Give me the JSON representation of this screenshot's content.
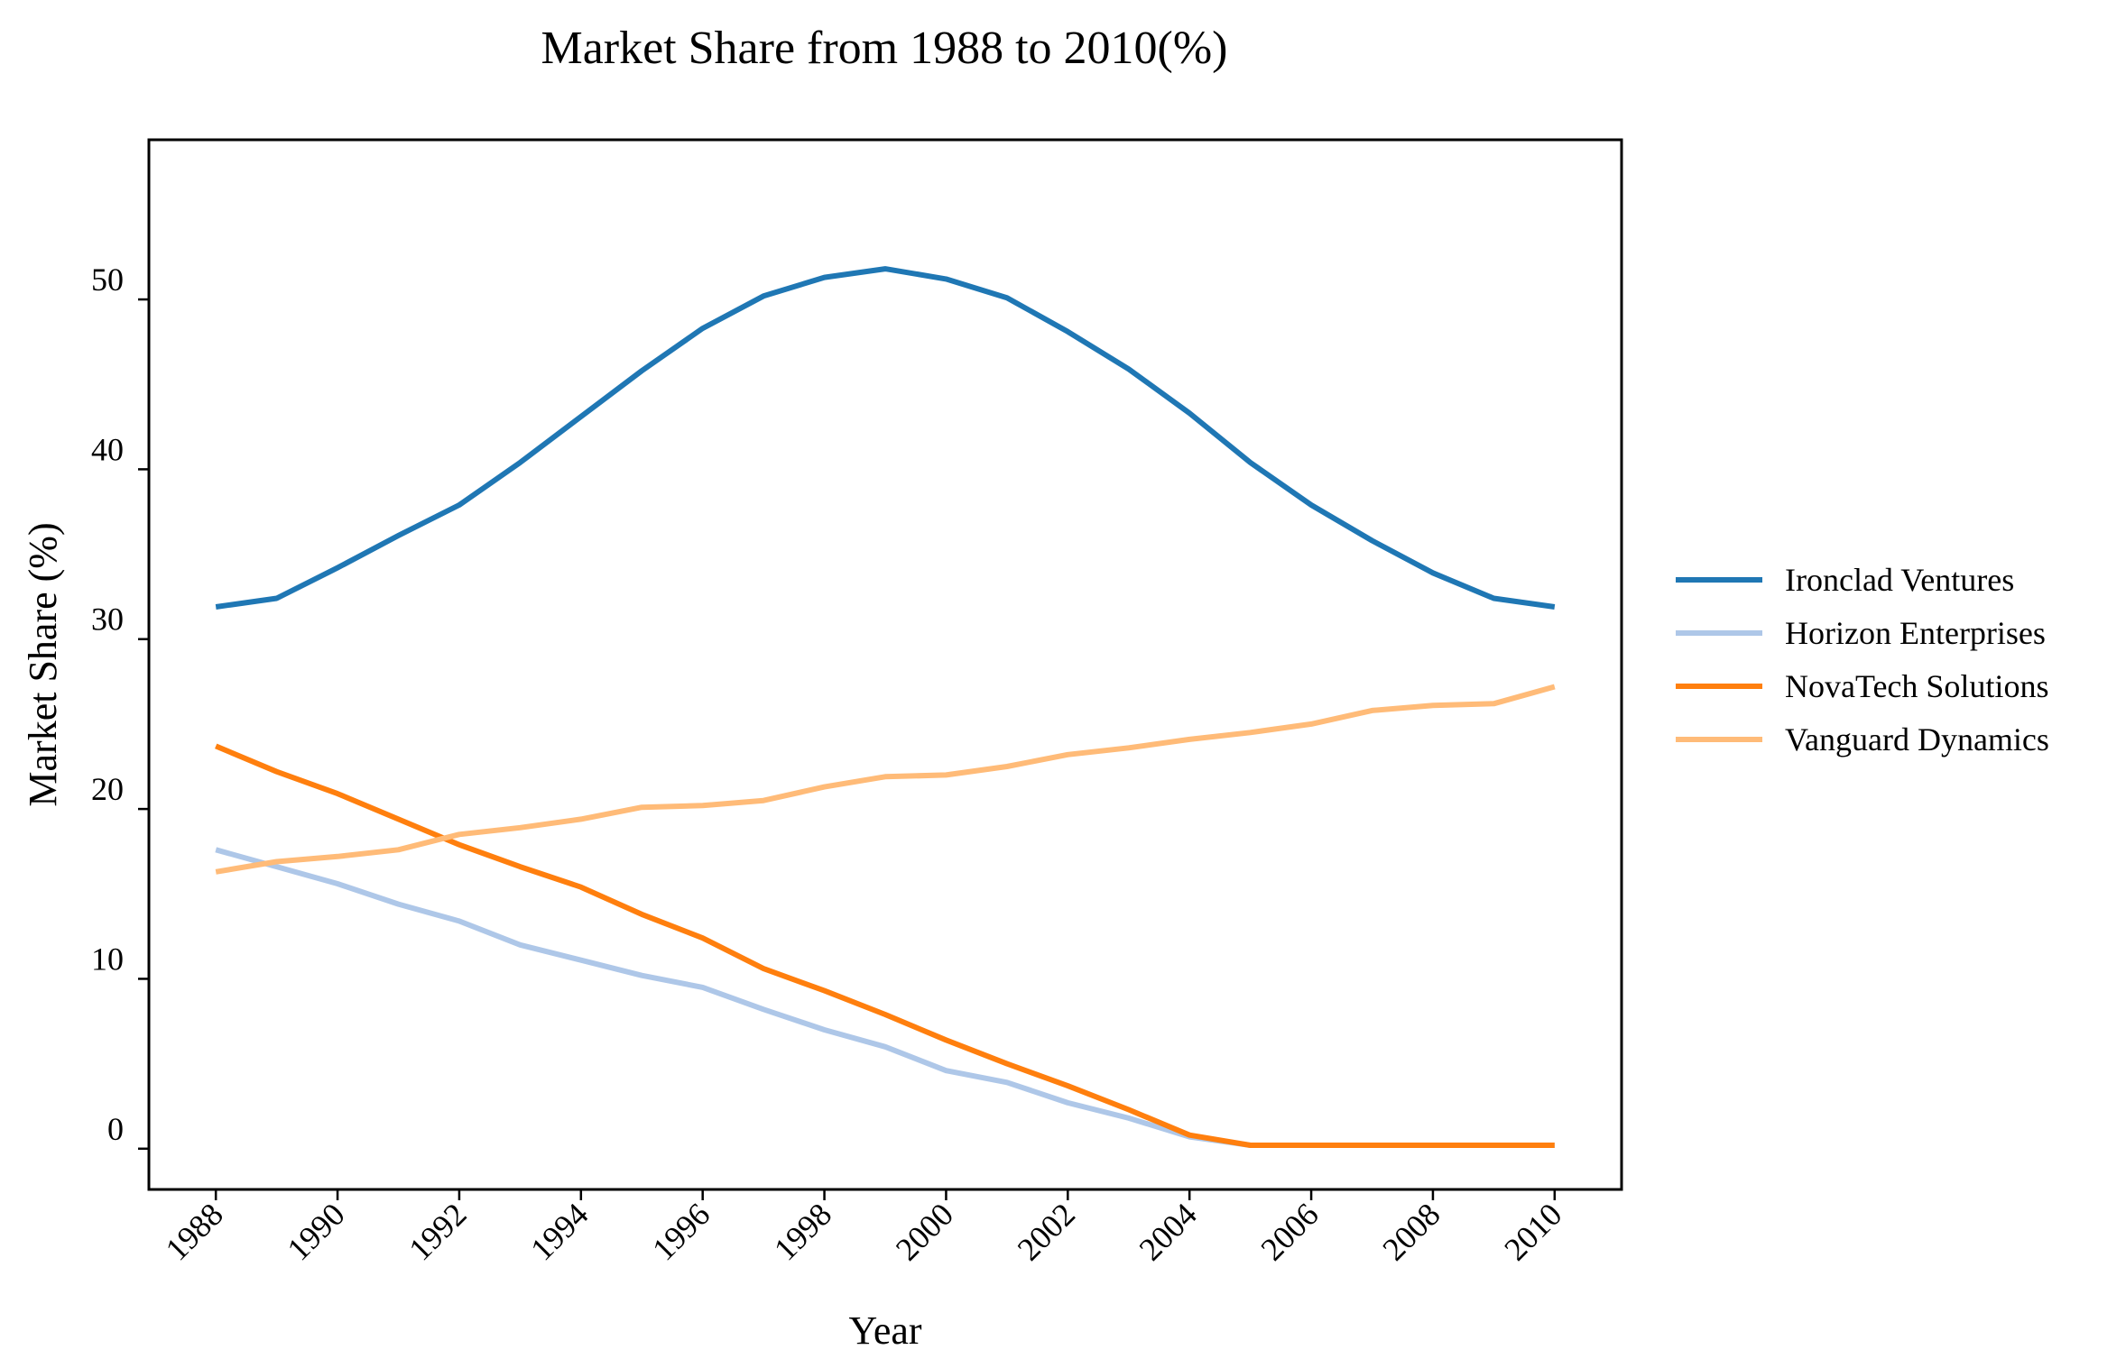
{
  "chart_data": {
    "type": "line",
    "title": "Market Share from 1988 to 2010(%)",
    "xlabel": "Year",
    "ylabel": "Market Share (%)",
    "xlim": [
      1986.9,
      2011.1
    ],
    "ylim": [
      -2.4,
      59.4
    ],
    "x_ticks": [
      1988,
      1990,
      1992,
      1994,
      1996,
      1998,
      2000,
      2002,
      2004,
      2006,
      2008,
      2010
    ],
    "y_ticks": [
      0,
      10,
      20,
      30,
      40,
      50
    ],
    "grid": false,
    "legend_position": "right",
    "x": [
      1988,
      1989,
      1990,
      1991,
      1992,
      1993,
      1994,
      1995,
      1996,
      1997,
      1998,
      1999,
      2000,
      2001,
      2002,
      2003,
      2004,
      2005,
      2006,
      2007,
      2008,
      2009,
      2010
    ],
    "series": [
      {
        "name": "Ironclad Ventures",
        "color": "#1f77b4",
        "values": [
          31.9,
          32.4,
          34.2,
          36.1,
          37.9,
          40.4,
          43.1,
          45.8,
          48.3,
          50.2,
          51.3,
          51.8,
          51.2,
          50.1,
          48.1,
          45.9,
          43.3,
          40.4,
          37.9,
          35.8,
          33.9,
          32.4,
          31.9
        ]
      },
      {
        "name": "Horizon Enterprises",
        "color": "#aec7e8",
        "values": [
          17.6,
          16.6,
          15.6,
          14.4,
          13.4,
          12.0,
          11.1,
          10.2,
          9.5,
          8.2,
          7.0,
          6.0,
          4.6,
          3.9,
          2.7,
          1.8,
          0.7,
          0.2,
          0.2,
          0.2,
          0.2,
          0.2,
          0.2
        ]
      },
      {
        "name": "NovaTech Solutions",
        "color": "#ff7f0e",
        "values": [
          23.7,
          22.2,
          20.9,
          19.4,
          17.9,
          16.6,
          15.4,
          13.8,
          12.4,
          10.6,
          9.3,
          7.9,
          6.4,
          5.0,
          3.7,
          2.3,
          0.8,
          0.2,
          0.2,
          0.2,
          0.2,
          0.2,
          0.2
        ]
      },
      {
        "name": "Vanguard Dynamics",
        "color": "#ffbb78",
        "values": [
          16.3,
          16.9,
          17.2,
          17.6,
          18.5,
          18.9,
          19.4,
          20.1,
          20.2,
          20.5,
          21.3,
          21.9,
          22.0,
          22.5,
          23.2,
          23.6,
          24.1,
          24.5,
          25.0,
          25.8,
          26.1,
          26.2,
          27.2
        ]
      }
    ]
  }
}
